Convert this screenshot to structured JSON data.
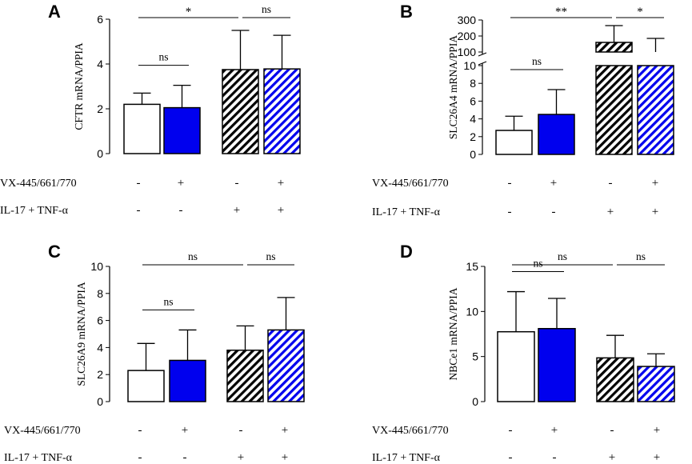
{
  "row_labels": [
    "VX-445/661/770",
    "IL-17 + TNF-α"
  ],
  "treatment_signs": [
    [
      "-",
      "+",
      "-",
      "+"
    ],
    [
      "-",
      "-",
      "+",
      "+"
    ]
  ],
  "colors": {
    "bar1": "#ffffff",
    "bar2": "#0000ee",
    "bar3": "#000000",
    "bar4": "#0000ee",
    "stroke": "#000000"
  },
  "chart_data": [
    {
      "panel": "A",
      "type": "bar",
      "ylabel": "CFTR mRNA/PPIA",
      "ylim": [
        0,
        6
      ],
      "yticks": [
        "0",
        "2",
        "4",
        "6"
      ],
      "groups": [
        "VX- / IL-17+TNF- -",
        "VX+ / IL-17+TNF- -",
        "VX- / IL-17+TNF- +",
        "VX+ / IL-17+TNF- +"
      ],
      "values": [
        2.2,
        2.05,
        3.75,
        3.78
      ],
      "errors": [
        0.5,
        1.0,
        1.75,
        1.5
      ],
      "brackets": [
        {
          "from": 0,
          "to": 1,
          "label": "ns",
          "level": 1
        },
        {
          "from": 0,
          "to": 2,
          "label": "*",
          "level": 0
        },
        {
          "from": 2,
          "to": 3,
          "label": "ns",
          "level": 0
        }
      ]
    },
    {
      "panel": "B",
      "type": "bar",
      "ylabel": "SLC26A4 mRNA/PPIA",
      "ylim": [
        0,
        300
      ],
      "broken_axis": true,
      "yticks_lower": [
        "0",
        "2",
        "4",
        "6",
        "8",
        "10"
      ],
      "yticks_upper": [
        "100",
        "200",
        "300"
      ],
      "groups": [
        "VX- / IL-17+TNF- -",
        "VX+ / IL-17+TNF- -",
        "VX- / IL-17+TNF- +",
        "VX+ / IL-17+TNF- +"
      ],
      "values": [
        2.7,
        4.5,
        160,
        100
      ],
      "errors": [
        1.6,
        2.8,
        105,
        85
      ],
      "brackets": [
        {
          "from": 0,
          "to": 1,
          "label": "ns",
          "level": 1
        },
        {
          "from": 0,
          "to": 2,
          "label": "**",
          "level": 0
        },
        {
          "from": 2,
          "to": 3,
          "label": "*",
          "level": 0
        }
      ]
    },
    {
      "panel": "C",
      "type": "bar",
      "ylabel": "SLC26A9 mRNA/PPIA",
      "ylim": [
        0,
        10
      ],
      "yticks": [
        "0",
        "2",
        "4",
        "6",
        "8",
        "10"
      ],
      "groups": [
        "VX- / IL-17+TNF- -",
        "VX+ / IL-17+TNF- -",
        "VX- / IL-17+TNF- +",
        "VX+ / IL-17+TNF- +"
      ],
      "values": [
        2.3,
        3.05,
        3.8,
        5.3
      ],
      "errors": [
        2.0,
        2.25,
        1.8,
        2.4
      ],
      "brackets": [
        {
          "from": 0,
          "to": 1,
          "label": "ns",
          "level": 1
        },
        {
          "from": 0,
          "to": 2,
          "label": "ns",
          "level": 0
        },
        {
          "from": 2,
          "to": 3,
          "label": "ns",
          "level": 0
        }
      ]
    },
    {
      "panel": "D",
      "type": "bar",
      "ylabel": "NBCe1 mRNA/PPIA",
      "ylim": [
        0,
        15
      ],
      "yticks": [
        "0",
        "5",
        "10",
        "15"
      ],
      "groups": [
        "VX- / IL-17+TNF- -",
        "VX+ / IL-17+TNF- -",
        "VX- / IL-17+TNF- +",
        "VX+ / IL-17+TNF- +"
      ],
      "values": [
        7.75,
        8.1,
        4.85,
        3.9
      ],
      "errors": [
        4.45,
        3.35,
        2.5,
        1.4
      ],
      "brackets": [
        {
          "from": 0,
          "to": 1,
          "label": "ns",
          "level": 1
        },
        {
          "from": 0,
          "to": 2,
          "label": "ns",
          "level": 0
        },
        {
          "from": 2,
          "to": 3,
          "label": "ns",
          "level": 0
        }
      ]
    }
  ]
}
